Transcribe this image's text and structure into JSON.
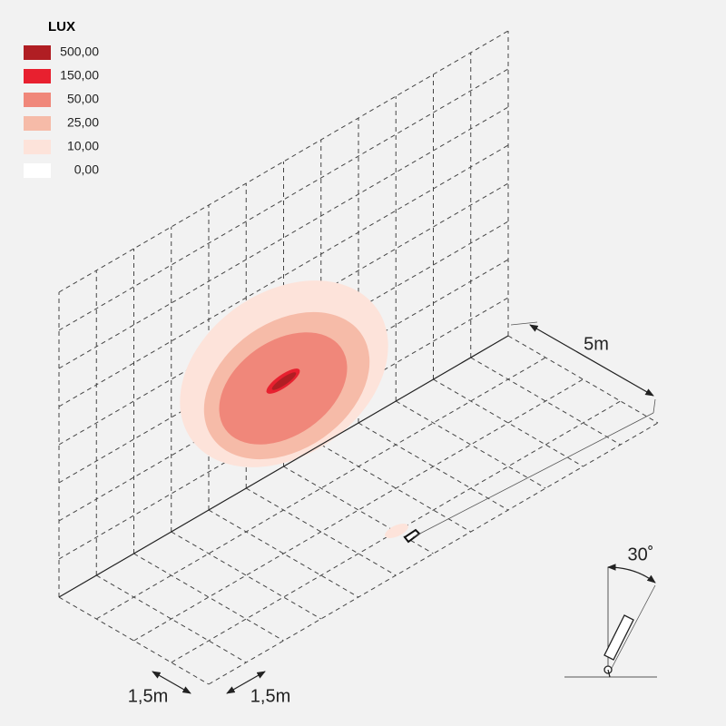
{
  "legend": {
    "title": "LUX",
    "items": [
      {
        "label": "500,00",
        "color": "#b01e23"
      },
      {
        "label": "150,00",
        "color": "#e8202f"
      },
      {
        "label": "50,00",
        "color": "#f0877a"
      },
      {
        "label": "25,00",
        "color": "#f6bba8"
      },
      {
        "label": "10,00",
        "color": "#fde3da"
      },
      {
        "label": "0,00",
        "color": "#ffffff"
      }
    ]
  },
  "dimensions": {
    "distance": "5m",
    "spacing_left": "1,5m",
    "spacing_right": "1,5m",
    "tilt_angle": "30˚"
  }
}
